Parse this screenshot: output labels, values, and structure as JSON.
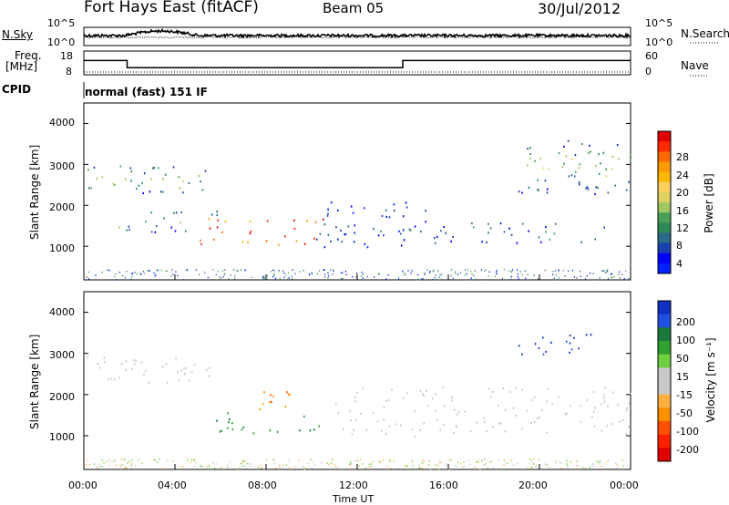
{
  "header": {
    "station": "Fort Hays East (fitACF)",
    "beam": "Beam 05",
    "date": "30/Jul/2012"
  },
  "noise_panel": {
    "left_label": "N.Sky",
    "right_label": "N.Search",
    "left_ticks": [
      "10^5",
      "10^0"
    ],
    "right_ticks": [
      "10^5",
      "10^0"
    ]
  },
  "freq_panel": {
    "left_label_line1": "Freq.",
    "left_label_line2": "[MHz]",
    "right_label": "Nave",
    "left_ticks": [
      "18",
      "8"
    ],
    "right_ticks": [
      "60",
      "0"
    ]
  },
  "cpid_panel": {
    "label": "CPID",
    "value": "normal (fast) 151 IF"
  },
  "power_panel": {
    "ylabel": "Slant Range [km]",
    "yticks": [
      "4000",
      "3000",
      "2000",
      "1000"
    ],
    "colorbar_label": "Power [dB]",
    "colorbar_ticks": [
      "28",
      "24",
      "20",
      "16",
      "12",
      "8",
      "4"
    ],
    "colorbar_colors": [
      "#e00000",
      "#ff2a00",
      "#ff6a00",
      "#ff9a00",
      "#ffb800",
      "#ffd060",
      "#e0d060",
      "#a0c860",
      "#4aa058",
      "#2d8a58",
      "#2a6a8a",
      "#1a40b0",
      "#0000ff",
      "#0020ff"
    ]
  },
  "velocity_panel": {
    "ylabel": "Slant Range [km]",
    "yticks": [
      "4000",
      "3000",
      "2000",
      "1000"
    ],
    "colorbar_label": "Velocity [m s⁻¹]",
    "colorbar_ticks": [
      "200",
      "100",
      "50",
      "15",
      "-15",
      "-50",
      "-100",
      "-200"
    ],
    "colorbar_colors": [
      "#1030c0",
      "#2050e0",
      "#1a7a3a",
      "#30a030",
      "#70d040",
      "#c8c8c8",
      "#c8c8c8",
      "#ffb040",
      "#ff9000",
      "#ff5000",
      "#ff2000",
      "#e00000"
    ]
  },
  "xaxis": {
    "label": "Time UT",
    "ticks": [
      "00:00",
      "04:00",
      "08:00",
      "12:00",
      "16:00",
      "20:00",
      "00:00"
    ]
  },
  "chart_data": {
    "type": "heatmap",
    "title": "Fort Hays East (fitACF)",
    "xlabel": "Time UT",
    "ylabel": "Slant Range [km]",
    "x_range_hours": [
      0,
      24
    ],
    "y_range_km": [
      180,
      4500
    ],
    "frequency_mhz": {
      "segments": [
        {
          "start_hour": 0,
          "end_hour": 1.9,
          "value": 14
        },
        {
          "start_hour": 1.9,
          "end_hour": 14.0,
          "value": 11
        },
        {
          "start_hour": 14.0,
          "end_hour": 24,
          "value": 14
        }
      ],
      "ylim": [
        8,
        18
      ]
    },
    "nave": {
      "value": 7,
      "ylim": [
        0,
        60
      ]
    },
    "power_scatter_regions": [
      {
        "name": "band-early",
        "t0": 0.0,
        "t1": 5.5,
        "r0": 2300,
        "r1": 3000,
        "power_db": 12
      },
      {
        "name": "band-midlow",
        "t0": 1.5,
        "t1": 6.0,
        "r0": 1350,
        "r1": 1900,
        "power_db": 10
      },
      {
        "name": "strong-core",
        "t0": 5.0,
        "t1": 10.5,
        "r0": 1050,
        "r1": 1700,
        "power_db": 28
      },
      {
        "name": "band-afternoon",
        "t0": 10.0,
        "t1": 15.0,
        "r0": 1000,
        "r1": 2100,
        "power_db": 8
      },
      {
        "name": "band-evening",
        "t0": 14.5,
        "t1": 23.0,
        "r0": 1100,
        "r1": 1600,
        "power_db": 8
      },
      {
        "name": "upper-evening",
        "t0": 19.0,
        "t1": 24.0,
        "r0": 2300,
        "r1": 3600,
        "power_db": 14
      }
    ],
    "velocity_scatter_regions": [
      {
        "name": "gs-early",
        "t0": 0.0,
        "t1": 5.5,
        "r0": 2300,
        "r1": 3000,
        "velocity": 0
      },
      {
        "name": "pos-core",
        "t0": 5.5,
        "t1": 10.5,
        "r0": 1050,
        "r1": 1600,
        "velocity": 100
      },
      {
        "name": "neg-patches",
        "t0": 7.5,
        "t1": 9.5,
        "r0": 1600,
        "r1": 2100,
        "velocity": -100
      },
      {
        "name": "gs-evening",
        "t0": 11.0,
        "t1": 24.0,
        "r0": 1000,
        "r1": 2200,
        "velocity": 0
      },
      {
        "name": "pos-evening",
        "t0": 19.0,
        "t1": 22.5,
        "r0": 3000,
        "r1": 3500,
        "velocity": 200
      }
    ]
  }
}
